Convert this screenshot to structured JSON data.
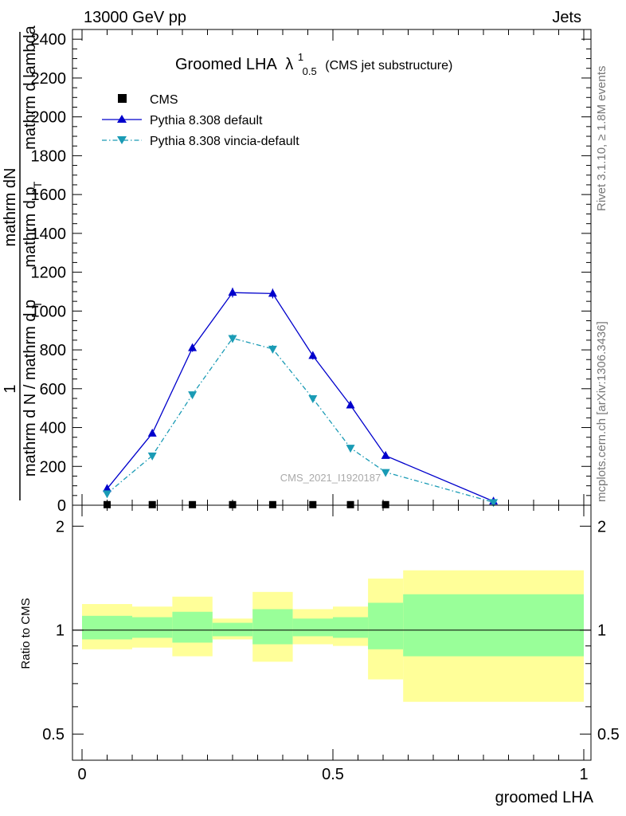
{
  "header": {
    "left": "13000 GeV pp",
    "right": "Jets"
  },
  "side_labels": {
    "rivet": "Rivet 3.1.10, ≥ 1.8M events",
    "mcplots": "mcplots.cern.ch [arXiv:1306.3436]"
  },
  "watermark": "CMS_2021_I1920187",
  "colors": {
    "cms": "#000000",
    "pythia_default": "#0000cc",
    "pythia_vincia": "#1a9bb5",
    "band_inner": "#99ff99",
    "band_outer": "#ffff99"
  },
  "chart_data": [
    {
      "type": "line",
      "panel": "main",
      "title": "Groomed LHA",
      "title_symbol": "λ",
      "title_sup": "1",
      "title_sub": "0.5",
      "title_note": "(CMS jet substructure)",
      "ylabel_top": "mathrm dN",
      "ylabel_mid": "1",
      "ylabel_a": "mathrm d N / mathrm d p",
      "ylabel_b": "mathrm d p",
      "ylabel_c": "mathrm d lambda",
      "ylabel_sub": "T",
      "ylim": [
        0,
        2450
      ],
      "yticks": [
        0,
        200,
        400,
        600,
        800,
        1000,
        1200,
        1400,
        1600,
        1800,
        2000,
        2200,
        2400
      ],
      "xlim": [
        0,
        1
      ],
      "legend_position": "top-left",
      "series": [
        {
          "name": "CMS",
          "marker": "square",
          "x": [
            0.05,
            0.14,
            0.22,
            0.3,
            0.38,
            0.46,
            0.535,
            0.605
          ],
          "y": [
            3,
            3,
            3,
            3,
            3,
            3,
            3,
            3
          ]
        },
        {
          "name": "Pythia 8.308 default",
          "marker": "triangle-up",
          "line": "solid",
          "x": [
            0.05,
            0.14,
            0.22,
            0.3,
            0.38,
            0.46,
            0.535,
            0.605,
            0.82
          ],
          "y": [
            85,
            370,
            810,
            1095,
            1090,
            770,
            515,
            255,
            20
          ],
          "err": [
            8,
            12,
            20,
            25,
            25,
            20,
            15,
            10,
            4
          ]
        },
        {
          "name": "Pythia 8.308 vincia-default",
          "marker": "triangle-down",
          "line": "dashdot",
          "x": [
            0.05,
            0.14,
            0.22,
            0.3,
            0.38,
            0.46,
            0.535,
            0.605,
            0.82
          ],
          "y": [
            60,
            255,
            570,
            860,
            805,
            550,
            295,
            170,
            15
          ],
          "err": [
            6,
            10,
            15,
            20,
            20,
            15,
            10,
            8,
            3
          ]
        }
      ]
    },
    {
      "type": "area",
      "panel": "ratio",
      "ylabel": "Ratio to CMS",
      "ylim": [
        0.42,
        2.3
      ],
      "yticks_major": [
        0.5,
        1,
        2
      ],
      "ytick_labels": [
        "0.5",
        "1",
        "2"
      ],
      "xlabel": "groomed LHA",
      "xlim": [
        0,
        1
      ],
      "xticks": [
        0,
        0.5,
        1
      ],
      "xtick_labels": [
        "0",
        "0.5",
        "1"
      ],
      "reference_line": 1,
      "bins": [
        {
          "x0": 0.0,
          "x1": 0.1,
          "inner": [
            0.94,
            1.1
          ],
          "outer": [
            0.88,
            1.19
          ]
        },
        {
          "x0": 0.1,
          "x1": 0.18,
          "inner": [
            0.95,
            1.09
          ],
          "outer": [
            0.89,
            1.17
          ]
        },
        {
          "x0": 0.18,
          "x1": 0.26,
          "inner": [
            0.92,
            1.13
          ],
          "outer": [
            0.84,
            1.25
          ]
        },
        {
          "x0": 0.26,
          "x1": 0.34,
          "inner": [
            0.96,
            1.05
          ],
          "outer": [
            0.94,
            1.08
          ]
        },
        {
          "x0": 0.34,
          "x1": 0.42,
          "inner": [
            0.91,
            1.15
          ],
          "outer": [
            0.81,
            1.29
          ]
        },
        {
          "x0": 0.42,
          "x1": 0.5,
          "inner": [
            0.96,
            1.08
          ],
          "outer": [
            0.91,
            1.15
          ]
        },
        {
          "x0": 0.5,
          "x1": 0.57,
          "inner": [
            0.95,
            1.09
          ],
          "outer": [
            0.9,
            1.17
          ]
        },
        {
          "x0": 0.57,
          "x1": 0.64,
          "inner": [
            0.88,
            1.2
          ],
          "outer": [
            0.72,
            1.41
          ]
        },
        {
          "x0": 0.64,
          "x1": 1.0,
          "inner": [
            0.84,
            1.27
          ],
          "outer": [
            0.62,
            1.49
          ]
        }
      ]
    }
  ]
}
